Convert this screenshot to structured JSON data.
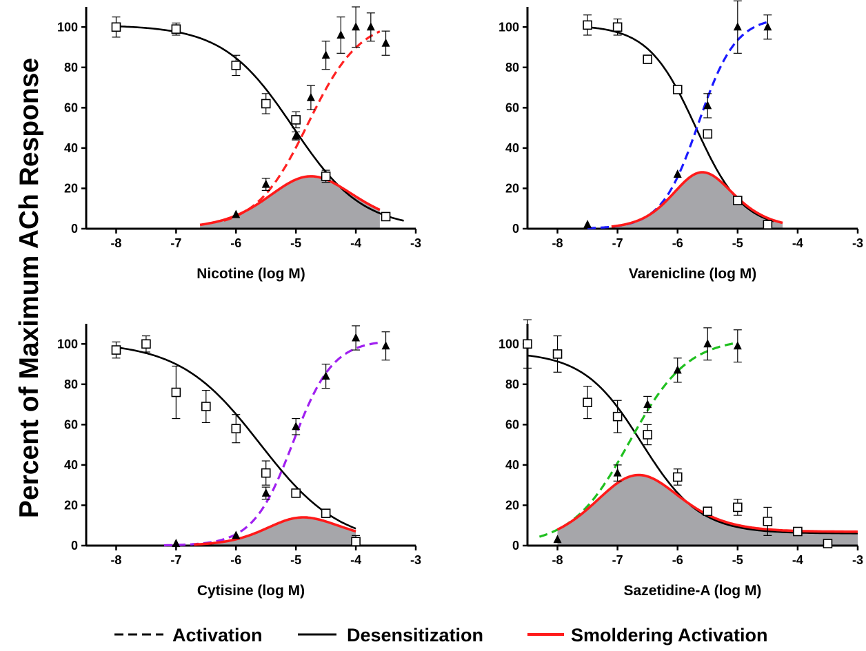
{
  "ylabel": "Percent  of Maximum  ACh  Response",
  "colors": {
    "desensitization": "#000000",
    "smoldering": "#ff1a1a",
    "area": "#a6a6aa",
    "axis": "#000000"
  },
  "legend": [
    {
      "label": "Activation",
      "style": "dashed"
    },
    {
      "label": "Desensitization",
      "style": "solid-black"
    },
    {
      "label": "Smoldering Activation",
      "style": "solid-red"
    }
  ],
  "chart_data": [
    {
      "type": "line",
      "xlabel": "Nicotine (log M)",
      "xlim": [
        -8.5,
        -3
      ],
      "ylim": [
        0,
        110
      ],
      "xticks": [
        -8,
        -7,
        -6,
        -5,
        -4,
        -3
      ],
      "yticks": [
        0,
        20,
        40,
        60,
        80,
        100
      ],
      "activation_color": "#ff2222",
      "activation_fit": {
        "ec50": -4.8,
        "hill": 1.0,
        "max": 104,
        "from": -6.2,
        "to": -3.6
      },
      "desensitization_fit": {
        "ic50": -5.05,
        "hill": 0.75,
        "top": 101,
        "bottom": 0,
        "from": -8,
        "to": -3.2
      },
      "smoldering_peak": 26,
      "smoldering_range": [
        -6.6,
        -3.6
      ],
      "series": [
        {
          "name": "Activation",
          "points": [
            {
              "x": -6.0,
              "y": 7,
              "err": 0
            },
            {
              "x": -5.5,
              "y": 22,
              "err": 3
            },
            {
              "x": -5.0,
              "y": 46,
              "err": 2
            },
            {
              "x": -4.75,
              "y": 65,
              "err": 6
            },
            {
              "x": -4.5,
              "y": 86,
              "err": 7
            },
            {
              "x": -4.25,
              "y": 96,
              "err": 9
            },
            {
              "x": -4.0,
              "y": 100,
              "err": 10
            },
            {
              "x": -3.75,
              "y": 100,
              "err": 7
            },
            {
              "x": -3.5,
              "y": 92,
              "err": 6
            }
          ]
        },
        {
          "name": "Desensitization",
          "points": [
            {
              "x": -8.0,
              "y": 100,
              "err": 5
            },
            {
              "x": -7.0,
              "y": 99,
              "err": 3
            },
            {
              "x": -6.0,
              "y": 81,
              "err": 5
            },
            {
              "x": -5.5,
              "y": 62,
              "err": 5
            },
            {
              "x": -5.0,
              "y": 54,
              "err": 4
            },
            {
              "x": -4.5,
              "y": 26,
              "err": 3
            },
            {
              "x": -3.5,
              "y": 6,
              "err": 0
            }
          ]
        }
      ]
    },
    {
      "type": "line",
      "xlabel": "Varenicline (log M)",
      "xlim": [
        -8.5,
        -3
      ],
      "ylim": [
        0,
        110
      ],
      "xticks": [
        -8,
        -7,
        -6,
        -5,
        -4,
        -3
      ],
      "yticks": [
        0,
        20,
        40,
        60,
        80,
        100
      ],
      "activation_color": "#1a1aff",
      "activation_fit": {
        "ec50": -5.65,
        "hill": 1.4,
        "max": 105,
        "from": -7.5,
        "to": -4.5
      },
      "desensitization_fit": {
        "ic50": -5.7,
        "hill": 1.1,
        "top": 101,
        "bottom": 0,
        "from": -7.5,
        "to": -4.4
      },
      "smoldering_peak": 28,
      "smoldering_range": [
        -7.1,
        -4.25
      ],
      "series": [
        {
          "name": "Activation",
          "points": [
            {
              "x": -7.5,
              "y": 2,
              "err": 0
            },
            {
              "x": -6.0,
              "y": 27,
              "err": 0
            },
            {
              "x": -5.5,
              "y": 61,
              "err": 6
            },
            {
              "x": -5.0,
              "y": 100,
              "err": 13
            },
            {
              "x": -4.5,
              "y": 100,
              "err": 6
            }
          ]
        },
        {
          "name": "Desensitization",
          "points": [
            {
              "x": -7.5,
              "y": 101,
              "err": 5
            },
            {
              "x": -7.0,
              "y": 100,
              "err": 4
            },
            {
              "x": -6.5,
              "y": 84,
              "err": 0
            },
            {
              "x": -6.0,
              "y": 69,
              "err": 0
            },
            {
              "x": -5.5,
              "y": 47,
              "err": 0
            },
            {
              "x": -5.0,
              "y": 14,
              "err": 0
            },
            {
              "x": -4.5,
              "y": 2,
              "err": 0
            }
          ]
        }
      ]
    },
    {
      "type": "line",
      "xlabel": "Cytisine (log M)",
      "xlim": [
        -8.5,
        -3
      ],
      "ylim": [
        0,
        110
      ],
      "xticks": [
        -8,
        -7,
        -6,
        -5,
        -4,
        -3
      ],
      "yticks": [
        0,
        20,
        40,
        60,
        80,
        100
      ],
      "activation_color": "#a020f0",
      "activation_fit": {
        "ec50": -5.05,
        "hill": 1.3,
        "max": 102,
        "from": -7.2,
        "to": -3.6
      },
      "desensitization_fit": {
        "ic50": -5.6,
        "hill": 0.65,
        "top": 101,
        "bottom": 0,
        "from": -8,
        "to": -4
      },
      "smoldering_peak": 14,
      "smoldering_range": [
        -6.7,
        -4.0
      ],
      "series": [
        {
          "name": "Activation",
          "points": [
            {
              "x": -7.0,
              "y": 1,
              "err": 0
            },
            {
              "x": -6.0,
              "y": 5,
              "err": 0
            },
            {
              "x": -5.5,
              "y": 26,
              "err": 3
            },
            {
              "x": -5.0,
              "y": 59,
              "err": 4
            },
            {
              "x": -4.5,
              "y": 84,
              "err": 6
            },
            {
              "x": -4.0,
              "y": 103,
              "err": 6
            },
            {
              "x": -3.5,
              "y": 99,
              "err": 7
            }
          ]
        },
        {
          "name": "Desensitization",
          "points": [
            {
              "x": -8.0,
              "y": 97,
              "err": 4
            },
            {
              "x": -7.5,
              "y": 100,
              "err": 4
            },
            {
              "x": -7.0,
              "y": 76,
              "err": 13
            },
            {
              "x": -6.5,
              "y": 69,
              "err": 8
            },
            {
              "x": -6.0,
              "y": 58,
              "err": 7
            },
            {
              "x": -5.5,
              "y": 36,
              "err": 6
            },
            {
              "x": -5.0,
              "y": 26,
              "err": 2
            },
            {
              "x": -4.5,
              "y": 16,
              "err": 2
            },
            {
              "x": -4.0,
              "y": 2,
              "err": 3
            }
          ]
        }
      ]
    },
    {
      "type": "line",
      "xlabel": "Sazetidine-A (log M)",
      "xlim": [
        -8.5,
        -3
      ],
      "ylim": [
        0,
        110
      ],
      "xticks": [
        -8,
        -7,
        -6,
        -5,
        -4,
        -3
      ],
      "yticks": [
        0,
        20,
        40,
        60,
        80,
        100
      ],
      "activation_color": "#20c020",
      "activation_fit": {
        "ec50": -6.8,
        "hill": 0.9,
        "max": 103,
        "from": -8.3,
        "to": -5
      },
      "desensitization_fit": {
        "ic50": -6.6,
        "hill": 0.9,
        "top": 96,
        "bottom": 6,
        "from": -8.5,
        "to": -3
      },
      "smoldering_peak": 35,
      "smoldering_range": [
        -8.0,
        -3.0
      ],
      "series": [
        {
          "name": "Activation",
          "points": [
            {
              "x": -8.0,
              "y": 3,
              "err": 0
            },
            {
              "x": -7.0,
              "y": 36,
              "err": 4
            },
            {
              "x": -6.5,
              "y": 70,
              "err": 4
            },
            {
              "x": -6.0,
              "y": 87,
              "err": 6
            },
            {
              "x": -5.5,
              "y": 100,
              "err": 8
            },
            {
              "x": -5.0,
              "y": 99,
              "err": 8
            }
          ]
        },
        {
          "name": "Desensitization",
          "points": [
            {
              "x": -8.5,
              "y": 100,
              "err": 12
            },
            {
              "x": -8.0,
              "y": 95,
              "err": 9
            },
            {
              "x": -7.5,
              "y": 71,
              "err": 8
            },
            {
              "x": -7.0,
              "y": 64,
              "err": 8
            },
            {
              "x": -6.5,
              "y": 55,
              "err": 5
            },
            {
              "x": -6.0,
              "y": 34,
              "err": 4
            },
            {
              "x": -5.5,
              "y": 17,
              "err": 0
            },
            {
              "x": -5.0,
              "y": 19,
              "err": 4
            },
            {
              "x": -4.5,
              "y": 12,
              "err": 7
            },
            {
              "x": -4.0,
              "y": 7,
              "err": 0
            },
            {
              "x": -3.5,
              "y": 1,
              "err": 0
            }
          ]
        }
      ]
    }
  ]
}
